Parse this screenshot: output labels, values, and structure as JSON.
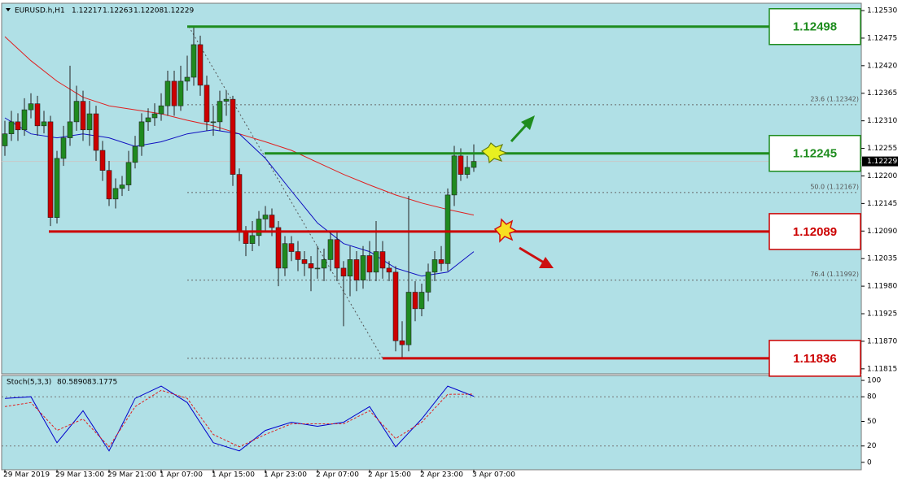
{
  "chart_data": {
    "type": "candlestick",
    "symbol": "EURUSD.h,H1",
    "up_color": "#1f8a1f",
    "down_color": "#cc0000",
    "background": "#b0e0e6",
    "categories": [
      "29 Mar 2019",
      null,
      null,
      null,
      null,
      null,
      null,
      null,
      "29 Mar 13:00",
      null,
      null,
      null,
      null,
      null,
      null,
      null,
      "29 Mar 21:00",
      null,
      null,
      null,
      null,
      null,
      null,
      null,
      "1 Apr 07:00",
      null,
      null,
      null,
      null,
      null,
      null,
      null,
      "1 Apr 15:00",
      null,
      null,
      null,
      null,
      null,
      null,
      null,
      "1 Apr 23:00",
      null,
      null,
      null,
      null,
      null,
      null,
      null,
      "2 Apr 07:00",
      null,
      null,
      null,
      null,
      null,
      null,
      null,
      "2 Apr 15:00",
      null,
      null,
      null,
      null,
      null,
      null,
      null,
      "2 Apr 23:00",
      null,
      null,
      null,
      null,
      null,
      null,
      null,
      "3 Apr 07:00"
    ],
    "open": [
      1.1226,
      1.12284,
      1.12308,
      1.12292,
      1.12332,
      1.12344,
      1.123,
      1.12308,
      1.12117,
      1.12235,
      1.12276,
      1.12308,
      1.12349,
      1.12292,
      1.12324,
      1.12251,
      1.12211,
      1.12154,
      1.12175,
      1.12182,
      1.12227,
      1.12259,
      1.12308,
      1.12316,
      1.12324,
      1.1234,
      1.12389,
      1.1234,
      1.12389,
      1.12397,
      1.12462,
      1.12381,
      1.12308,
      1.12308,
      1.12349,
      1.12353,
      1.12203,
      1.12089,
      1.12065,
      1.12081,
      1.12114,
      1.12122,
      1.12097,
      1.12016,
      1.12065,
      1.12049,
      1.12033,
      1.12025,
      1.12016,
      1.12016,
      1.12033,
      1.12073,
      1.12016,
      1.12,
      1.12033,
      1.11992,
      1.12041,
      1.12008,
      1.12049,
      1.12016,
      1.12008,
      1.11871,
      1.11863,
      1.11968,
      1.11935,
      1.11968,
      1.12008,
      1.12033,
      1.12025,
      1.12162,
      1.1224,
      1.12203,
      1.12217
    ],
    "high": [
      1.1231,
      1.1233,
      1.12325,
      1.12355,
      1.12365,
      1.1236,
      1.1233,
      1.1232,
      1.1225,
      1.123,
      1.1242,
      1.1238,
      1.1237,
      1.1235,
      1.1234,
      1.1227,
      1.1223,
      1.12195,
      1.122,
      1.1225,
      1.1228,
      1.12325,
      1.12335,
      1.12345,
      1.12365,
      1.1241,
      1.1241,
      1.1242,
      1.1244,
      1.12498,
      1.1248,
      1.124,
      1.1234,
      1.1237,
      1.1237,
      1.1236,
      1.12215,
      1.121,
      1.1211,
      1.1213,
      1.1214,
      1.12135,
      1.1211,
      1.1208,
      1.1208,
      1.1207,
      1.1205,
      1.1204,
      1.1206,
      1.12055,
      1.1209,
      1.1209,
      1.1203,
      1.1206,
      1.1205,
      1.1206,
      1.1207,
      1.1211,
      1.1207,
      1.1203,
      1.1202,
      1.1191,
      1.1216,
      1.1199,
      1.11985,
      1.12025,
      1.1205,
      1.1206,
      1.12175,
      1.1226,
      1.12255,
      1.1224,
      1.12263
    ],
    "low": [
      1.1224,
      1.1227,
      1.1227,
      1.1228,
      1.12315,
      1.1228,
      1.12285,
      1.121,
      1.12105,
      1.1222,
      1.1226,
      1.1229,
      1.1227,
      1.1226,
      1.1223,
      1.1219,
      1.1214,
      1.12135,
      1.1216,
      1.1217,
      1.12215,
      1.1224,
      1.1229,
      1.123,
      1.1231,
      1.1232,
      1.1232,
      1.1233,
      1.1237,
      1.1238,
      1.1236,
      1.1229,
      1.1228,
      1.1229,
      1.1232,
      1.1218,
      1.1207,
      1.1204,
      1.1205,
      1.1206,
      1.1209,
      1.1208,
      1.1198,
      1.12,
      1.1203,
      1.1201,
      1.12,
      1.1197,
      1.11995,
      1.1199,
      1.1201,
      1.1199,
      1.119,
      1.1196,
      1.1197,
      1.11975,
      1.1199,
      1.1199,
      1.11995,
      1.1199,
      1.1185,
      1.11836,
      1.1185,
      1.1191,
      1.1192,
      1.1195,
      1.1199,
      1.1201,
      1.1201,
      1.1214,
      1.1219,
      1.12195,
      1.12208
    ],
    "close": [
      1.12284,
      1.12308,
      1.12292,
      1.12332,
      1.12344,
      1.123,
      1.12308,
      1.12117,
      1.12235,
      1.12276,
      1.12308,
      1.12349,
      1.12292,
      1.12324,
      1.12251,
      1.12211,
      1.12154,
      1.12175,
      1.12182,
      1.12227,
      1.12259,
      1.12308,
      1.12316,
      1.12324,
      1.1234,
      1.12389,
      1.1234,
      1.12389,
      1.12397,
      1.12462,
      1.12381,
      1.12308,
      1.12308,
      1.12349,
      1.12353,
      1.12203,
      1.12089,
      1.12065,
      1.12081,
      1.12114,
      1.12122,
      1.12097,
      1.12016,
      1.12065,
      1.12049,
      1.12033,
      1.12025,
      1.12016,
      1.12016,
      1.12033,
      1.12073,
      1.12016,
      1.12,
      1.12033,
      1.11992,
      1.12041,
      1.12008,
      1.12049,
      1.12016,
      1.12008,
      1.11871,
      1.11863,
      1.11968,
      1.11935,
      1.11968,
      1.12008,
      1.12033,
      1.12025,
      1.12162,
      1.1224,
      1.12203,
      1.12217,
      1.12229
    ],
    "ylim": [
      1.11805,
      1.12543
    ],
    "yticks": [
      {
        "value": 1.1253,
        "label": "1.12530"
      },
      1.12475,
      {
        "value": 1.1242,
        "label": "1.12420"
      },
      1.12365,
      {
        "value": 1.1231,
        "label": "1.12310"
      },
      1.12255,
      {
        "value": 1.122,
        "label": "1.12200"
      },
      1.12145,
      {
        "value": 1.1209,
        "label": "1.12090"
      },
      1.12035,
      {
        "value": 1.1198,
        "label": "1.11980"
      },
      1.11925,
      {
        "value": 1.1187,
        "label": "1.11870"
      },
      1.11815
    ],
    "lines": [
      {
        "color": "#e02020",
        "x": [
          0,
          4,
          8,
          12,
          16,
          20,
          24,
          28,
          32,
          36,
          40,
          44,
          48,
          52,
          56,
          60,
          64,
          68,
          72
        ],
        "values": [
          1.12478,
          1.1243,
          1.12389,
          1.12357,
          1.1234,
          1.12332,
          1.12324,
          1.12311,
          1.123,
          1.12284,
          1.12268,
          1.12251,
          1.12227,
          1.12203,
          1.12182,
          1.12162,
          1.12146,
          1.12133,
          1.12122
        ]
      },
      {
        "color": "#1010c0",
        "x": [
          0,
          4,
          8,
          12,
          16,
          20,
          24,
          28,
          32,
          36,
          40,
          44,
          48,
          52,
          56,
          60,
          64,
          68,
          72
        ],
        "values": [
          1.12316,
          1.12284,
          1.12276,
          1.12284,
          1.12276,
          1.12259,
          1.12268,
          1.12284,
          1.12292,
          1.12284,
          1.12235,
          1.1217,
          1.12106,
          1.12065,
          1.12049,
          1.12016,
          1.12,
          1.12008,
          1.12049
        ]
      }
    ],
    "levels": [
      {
        "value": 1.12498,
        "color": "#1e8c1e"
      },
      {
        "value": 1.12245,
        "color": "#1e8c1e"
      },
      {
        "value": 1.12089,
        "color": "#cc0000"
      },
      {
        "value": 1.11836,
        "color": "#cc0000"
      }
    ],
    "fib_levels": [
      {
        "value": 1.12342,
        "label": "23.6 (1.12342)"
      },
      {
        "value": 1.12167,
        "label": "50.0 (1.12167)"
      },
      {
        "value": 1.11992,
        "label": "76.4 (1.11992)"
      }
    ],
    "stochastic": {
      "title": "Stoch(5,3,3)",
      "readout": [
        {
          "value": 80.589,
          "label": "80.5890"
        },
        {
          "value": 83.1775,
          "label": "83.1775"
        }
      ],
      "ylim": [
        -9,
        106
      ],
      "yticks": [
        100,
        80,
        50,
        20,
        0
      ],
      "levels": [
        80,
        20
      ],
      "x": [
        0,
        4,
        8,
        12,
        16,
        20,
        24,
        28,
        32,
        36,
        40,
        44,
        48,
        52,
        56,
        60,
        64,
        68,
        72
      ],
      "series": [
        {
          "color": "#0000cc",
          "values": [
            78,
            80,
            24,
            63,
            14,
            78,
            93,
            73,
            24,
            14,
            39,
            49,
            44,
            49,
            68,
            19,
            53,
            93,
            80.589
          ]
        },
        {
          "color": "#e02020",
          "values": [
            68,
            73,
            39,
            53,
            19,
            68,
            88,
            78,
            34,
            19,
            34,
            47,
            47,
            47,
            63,
            29,
            49,
            83,
            83.1775
          ]
        }
      ]
    }
  }
}
